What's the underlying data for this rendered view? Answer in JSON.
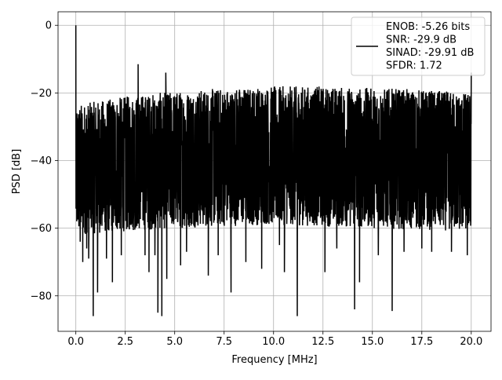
{
  "chart_data": {
    "type": "line",
    "title": "",
    "xlabel": "Frequency [MHz]",
    "ylabel": "PSD [dB]",
    "xlim": [
      -0.9,
      21.0
    ],
    "ylim": [
      -90.5,
      4.0
    ],
    "x_ticks": [
      0.0,
      2.5,
      5.0,
      7.5,
      10.0,
      12.5,
      15.0,
      17.5,
      20.0
    ],
    "x_tick_labels": [
      "0.0",
      "2.5",
      "5.0",
      "7.5",
      "10.0",
      "12.5",
      "15.0",
      "17.5",
      "20.0"
    ],
    "y_ticks": [
      0,
      -20,
      -40,
      -60,
      -80
    ],
    "y_tick_labels": [
      "0",
      "−20",
      "−40",
      "−60",
      "−80"
    ],
    "grid": true,
    "legend_position": "top-right",
    "series": [
      {
        "name": "ENOB: -5.26 bits\nSNR: -29.9 dB\nSINAD: -29.91 dB\nSFDR: 1.72",
        "color": "#000000",
        "x_range": [
          0.0,
          20.0
        ],
        "noise_band": {
          "upper_envelope": [
            [
              0.0,
              -23.5
            ],
            [
              2.5,
              -21.0
            ],
            [
              5.0,
              -19.5
            ],
            [
              7.5,
              -18.5
            ],
            [
              10.0,
              -18.0
            ],
            [
              12.5,
              -18.0
            ],
            [
              15.0,
              -18.5
            ],
            [
              17.5,
              -19.0
            ],
            [
              20.0,
              -20.0
            ]
          ],
          "lower_envelope": [
            [
              0.0,
              -62.0
            ],
            [
              2.5,
              -61.0
            ],
            [
              5.0,
              -60.0
            ],
            [
              7.5,
              -59.5
            ],
            [
              10.0,
              -59.0
            ],
            [
              12.5,
              -59.5
            ],
            [
              15.0,
              -60.0
            ],
            [
              17.5,
              -60.5
            ],
            [
              20.0,
              -61.0
            ]
          ]
        },
        "peaks": [
          {
            "x": 0.0,
            "y": 0.0
          },
          {
            "x": 0.02,
            "y": -44.0
          },
          {
            "x": 3.15,
            "y": -11.5
          },
          {
            "x": 4.55,
            "y": -14.0
          },
          {
            "x": 20.0,
            "y": -14.0
          }
        ],
        "dips": [
          {
            "x": 0.22,
            "y": -64.0
          },
          {
            "x": 0.35,
            "y": -70.0
          },
          {
            "x": 0.55,
            "y": -66.0
          },
          {
            "x": 0.65,
            "y": -69.0
          },
          {
            "x": 0.88,
            "y": -86.0
          },
          {
            "x": 1.1,
            "y": -79.0
          },
          {
            "x": 1.55,
            "y": -69.0
          },
          {
            "x": 1.85,
            "y": -76.0
          },
          {
            "x": 2.3,
            "y": -68.0
          },
          {
            "x": 3.5,
            "y": -68.0
          },
          {
            "x": 3.7,
            "y": -73.0
          },
          {
            "x": 4.0,
            "y": -68.0
          },
          {
            "x": 4.15,
            "y": -85.0
          },
          {
            "x": 4.35,
            "y": -86.0
          },
          {
            "x": 4.6,
            "y": -75.0
          },
          {
            "x": 5.3,
            "y": -71.0
          },
          {
            "x": 5.6,
            "y": -67.0
          },
          {
            "x": 6.7,
            "y": -74.0
          },
          {
            "x": 7.2,
            "y": -68.0
          },
          {
            "x": 7.85,
            "y": -79.0
          },
          {
            "x": 8.6,
            "y": -70.0
          },
          {
            "x": 9.4,
            "y": -72.0
          },
          {
            "x": 10.3,
            "y": -65.0
          },
          {
            "x": 10.55,
            "y": -73.0
          },
          {
            "x": 11.2,
            "y": -86.0
          },
          {
            "x": 12.6,
            "y": -73.0
          },
          {
            "x": 13.2,
            "y": -66.0
          },
          {
            "x": 14.1,
            "y": -84.0
          },
          {
            "x": 14.35,
            "y": -76.0
          },
          {
            "x": 15.3,
            "y": -68.0
          },
          {
            "x": 16.0,
            "y": -84.5
          },
          {
            "x": 16.6,
            "y": -67.0
          },
          {
            "x": 17.5,
            "y": -66.0
          },
          {
            "x": 18.0,
            "y": -67.0
          },
          {
            "x": 19.0,
            "y": -67.0
          },
          {
            "x": 19.8,
            "y": -68.0
          }
        ]
      }
    ]
  }
}
